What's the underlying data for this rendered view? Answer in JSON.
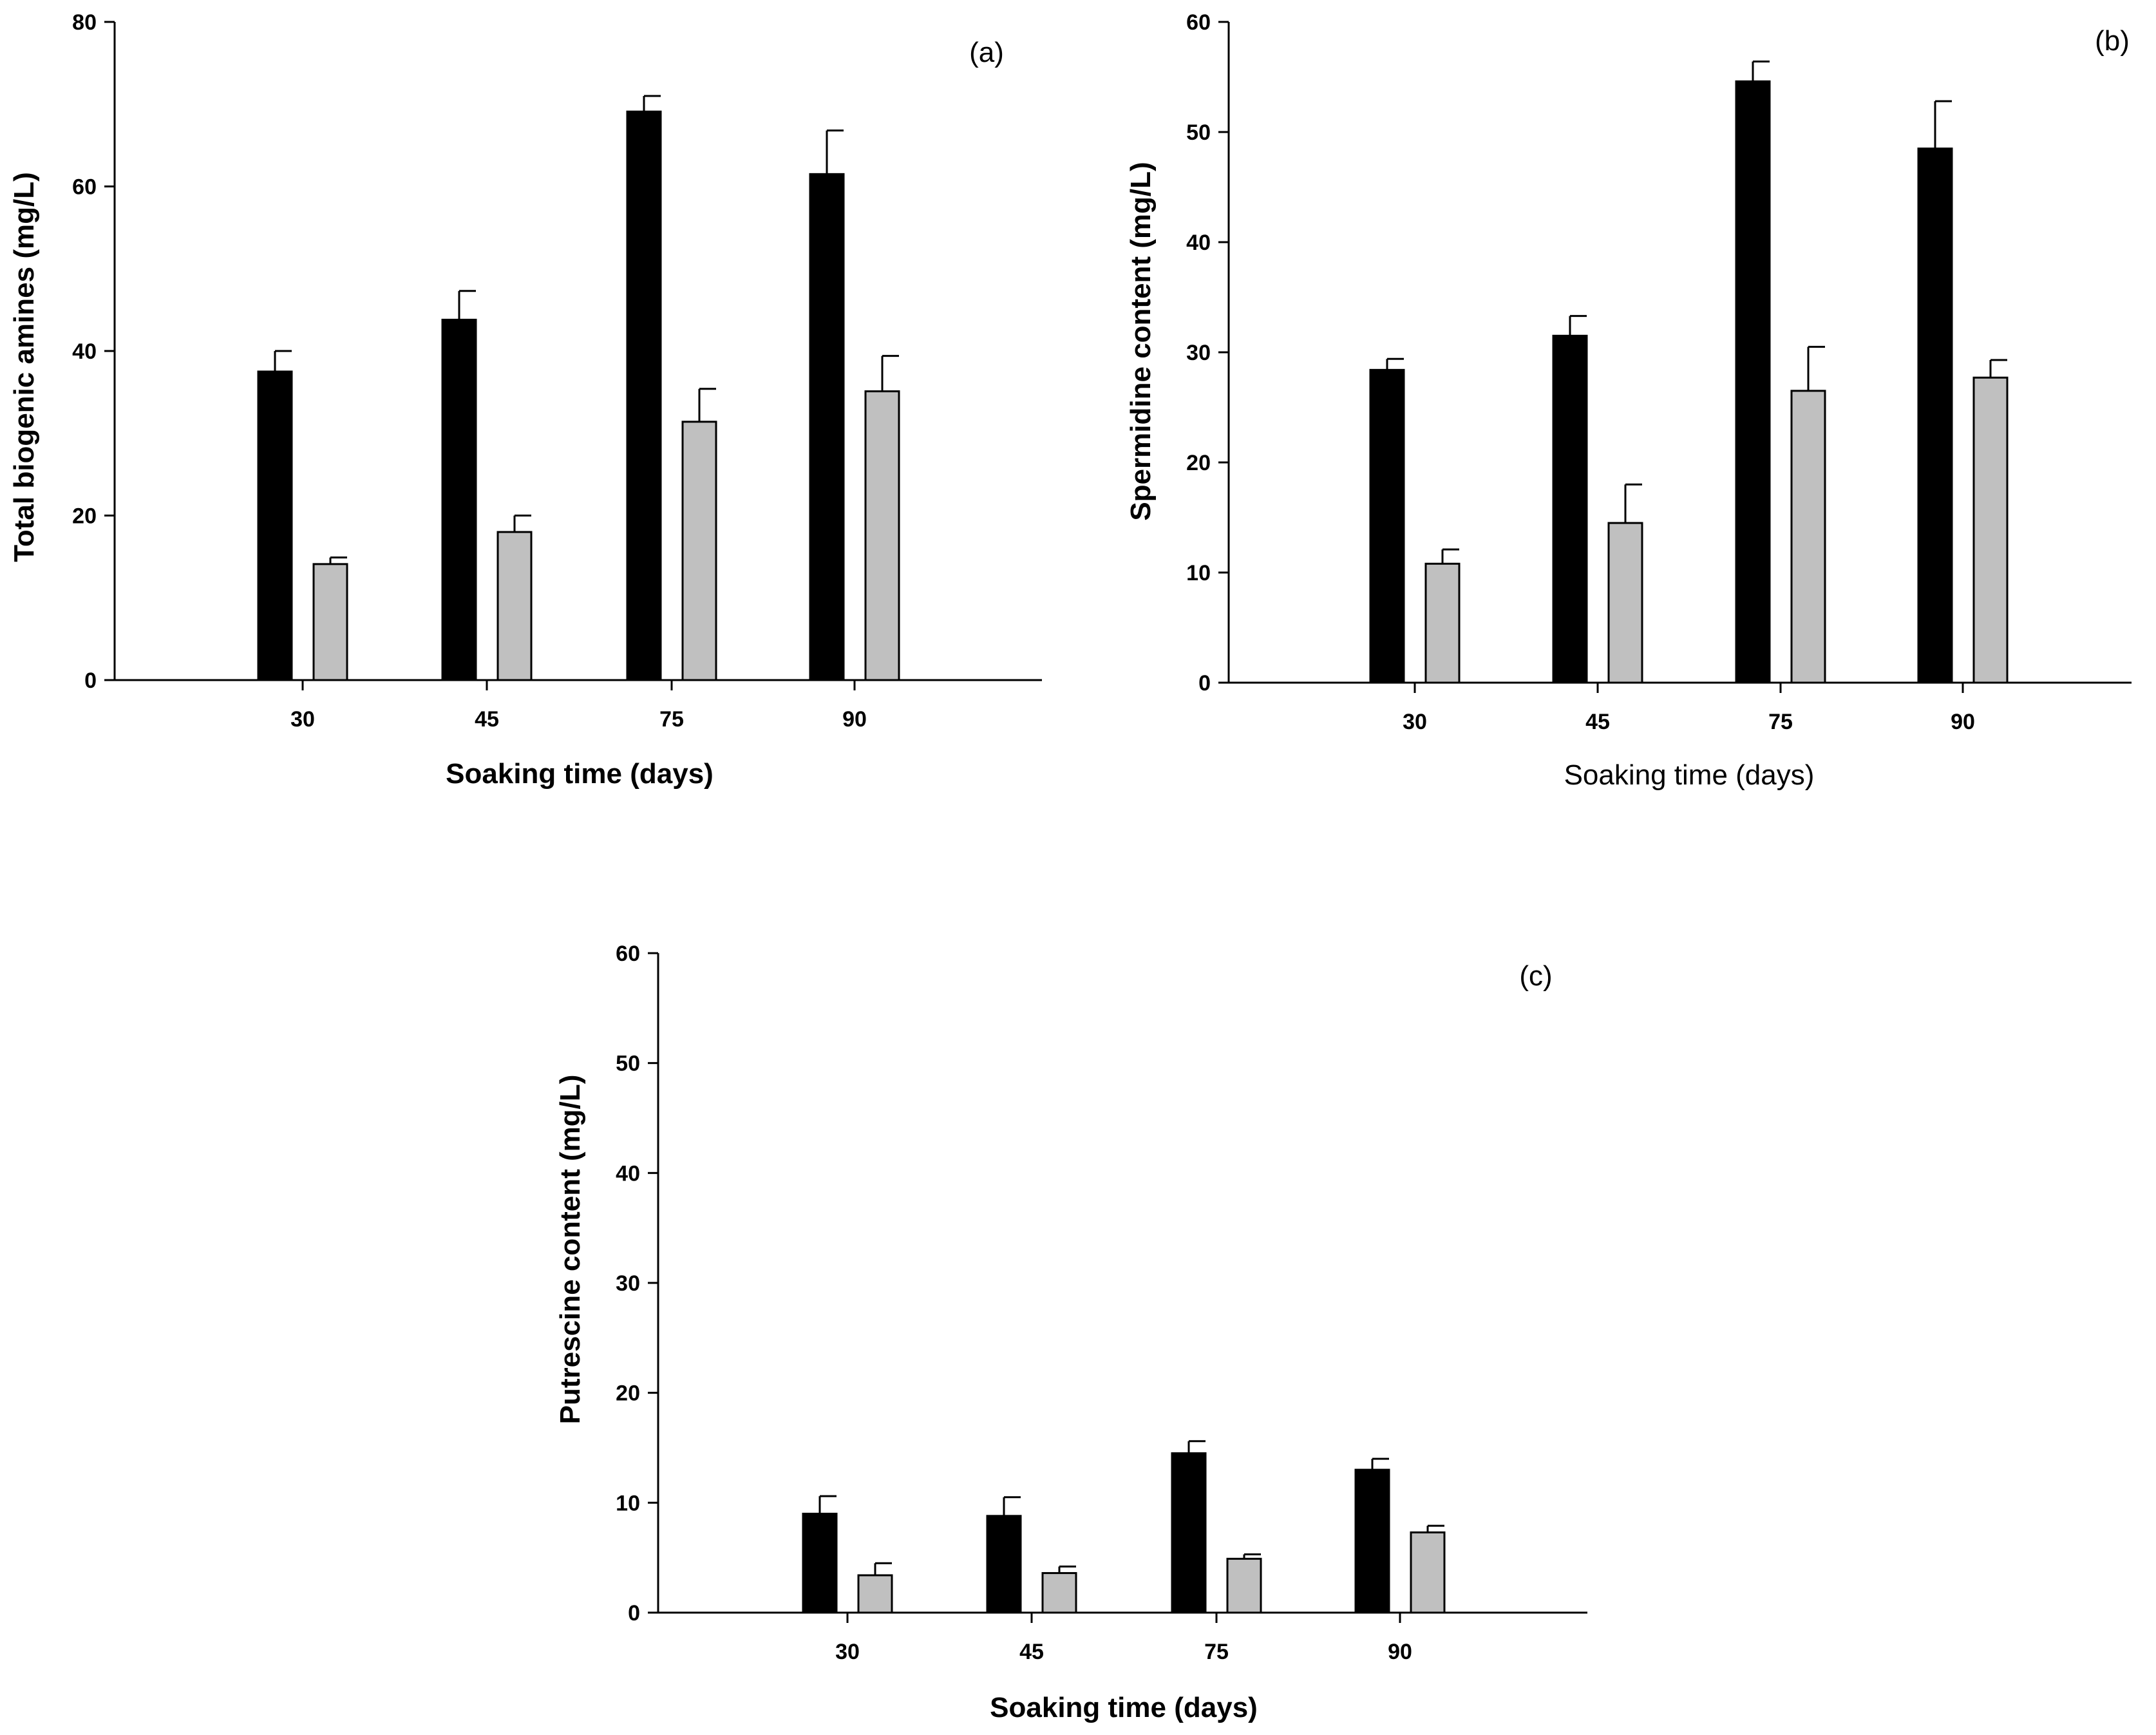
{
  "chart_data": [
    {
      "type": "bar",
      "panel_label": "(a)",
      "categories": [
        "30",
        "45",
        "75",
        "90"
      ],
      "xlabel": "Soaking time (days)",
      "xlabel_bold": true,
      "ylabel": "Total biogenic amines (mg/L)",
      "ylim": [
        0,
        80
      ],
      "yticks": [
        "0",
        "20",
        "40",
        "60",
        "80"
      ],
      "series": [
        {
          "name": "series-black",
          "color": "#000000",
          "values": [
            37.5,
            43.8,
            69.1,
            61.5
          ],
          "errors": [
            2.5,
            3.5,
            1.9,
            5.3
          ]
        },
        {
          "name": "series-gray",
          "color": "#c0c0c0",
          "values": [
            14.1,
            18.0,
            31.4,
            35.1
          ],
          "errors": [
            0.8,
            2.0,
            4.0,
            4.3
          ]
        }
      ]
    },
    {
      "type": "bar",
      "panel_label": "(b)",
      "categories": [
        "30",
        "45",
        "75",
        "90"
      ],
      "xlabel": "Soaking time (days)",
      "xlabel_bold": false,
      "ylabel": "Spermidine content (mg/L)",
      "ylim": [
        0,
        60
      ],
      "yticks": [
        "0",
        "10",
        "20",
        "30",
        "40",
        "50",
        "60"
      ],
      "series": [
        {
          "name": "series-black",
          "color": "#000000",
          "values": [
            28.4,
            31.5,
            54.6,
            48.5
          ],
          "errors": [
            1.0,
            1.8,
            1.8,
            4.3
          ]
        },
        {
          "name": "series-gray",
          "color": "#c0c0c0",
          "values": [
            10.8,
            14.5,
            26.5,
            27.7
          ],
          "errors": [
            1.3,
            3.5,
            4.0,
            1.6
          ]
        }
      ]
    },
    {
      "type": "bar",
      "panel_label": "(c)",
      "categories": [
        "30",
        "45",
        "75",
        "90"
      ],
      "xlabel": "Soaking time (days)",
      "xlabel_bold": true,
      "ylabel": "Putrescine content (mg/L)",
      "ylim": [
        0,
        60
      ],
      "yticks": [
        "0",
        "10",
        "20",
        "30",
        "40",
        "50",
        "60"
      ],
      "series": [
        {
          "name": "series-black",
          "color": "#000000",
          "values": [
            9.0,
            8.8,
            14.5,
            13.0
          ],
          "errors": [
            1.6,
            1.7,
            1.1,
            1.0
          ]
        },
        {
          "name": "series-gray",
          "color": "#c0c0c0",
          "values": [
            3.4,
            3.6,
            4.9,
            7.3
          ],
          "errors": [
            1.1,
            0.6,
            0.4,
            0.6
          ]
        }
      ]
    }
  ]
}
